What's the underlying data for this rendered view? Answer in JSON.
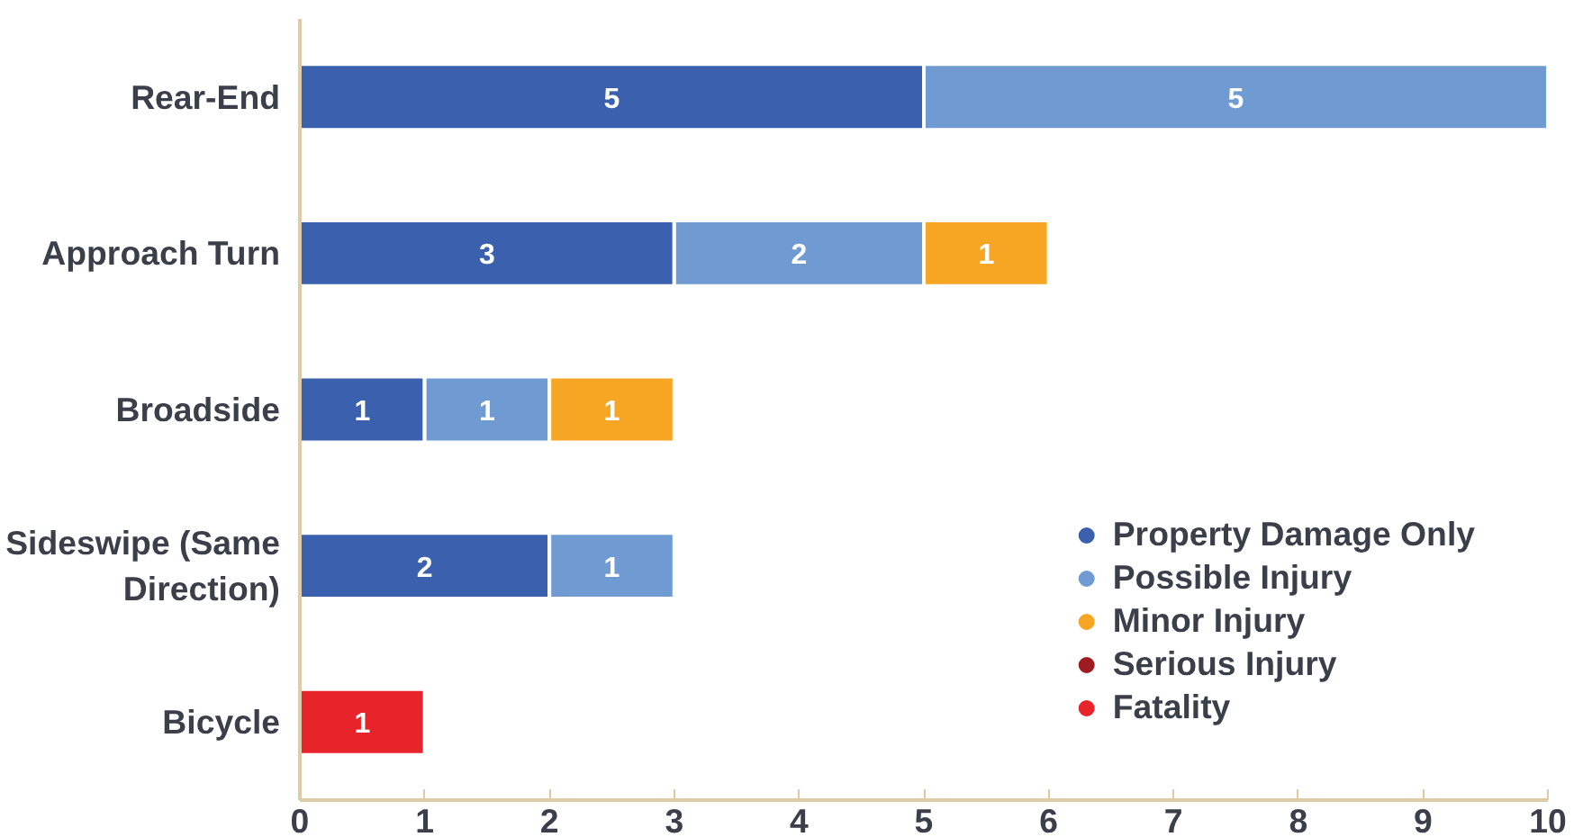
{
  "chart_data": {
    "type": "bar",
    "orientation": "horizontal",
    "stacked": true,
    "data_labels": true,
    "grid": false,
    "legend": "bottom right",
    "categories": [
      "Rear-End",
      "Approach Turn",
      "Broadside",
      "Sideswipe (Same Direction)",
      "Bicycle"
    ],
    "xlim": [
      0,
      10
    ],
    "xticks": [
      0,
      1,
      2,
      3,
      4,
      5,
      6,
      7,
      8,
      9,
      10
    ],
    "series": [
      {
        "name": "Property Damage Only",
        "color": "#3a60ae",
        "values": [
          5,
          3,
          1,
          2,
          null
        ]
      },
      {
        "name": "Possible Injury",
        "color": "#6f9bd2",
        "values": [
          5,
          2,
          1,
          1,
          null
        ]
      },
      {
        "name": "Minor Injury",
        "color": "#f6a623",
        "values": [
          null,
          1,
          1,
          null,
          null
        ]
      },
      {
        "name": "Serious Injury",
        "color": "#9e1b20",
        "values": [
          null,
          null,
          null,
          null,
          null
        ]
      },
      {
        "name": "Fatality",
        "color": "#e8242b",
        "values": [
          null,
          null,
          null,
          null,
          1
        ]
      }
    ]
  }
}
